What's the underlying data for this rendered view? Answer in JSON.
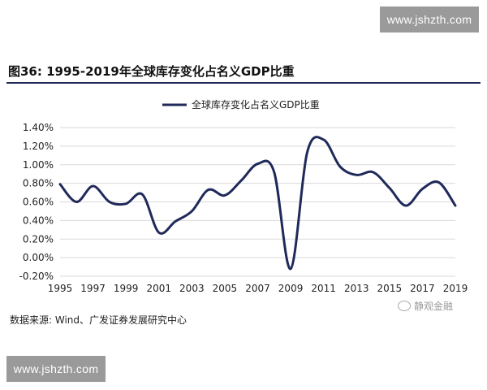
{
  "watermark": {
    "top": "www.jshzth.com",
    "bottom": "www.jshzth.com"
  },
  "figure": {
    "title": "图36:  1995-2019年全球库存变化占名义GDP比重",
    "source": "数据来源:  Wind、广发证券发展研究中心",
    "brand": "静观金融"
  },
  "colors": {
    "line": "#1f2a5a",
    "grid": "#d9d9d9",
    "rule": "#1f2a5a"
  },
  "chart_data": {
    "type": "line",
    "title": "",
    "xlabel": "",
    "ylabel": "",
    "legend_position": "top-center",
    "grid": true,
    "ylim": [
      -0.2,
      1.4
    ],
    "yticks": [
      -0.2,
      0.0,
      0.2,
      0.4,
      0.6,
      0.8,
      1.0,
      1.2,
      1.4
    ],
    "ytick_labels": [
      "-0.20%",
      "0.00%",
      "0.20%",
      "0.40%",
      "0.60%",
      "0.80%",
      "1.00%",
      "1.20%",
      "1.40%"
    ],
    "xlim": [
      1995,
      2019
    ],
    "xtick_labels": [
      "1995",
      "1997",
      "1999",
      "2001",
      "2003",
      "2005",
      "2007",
      "2009",
      "2011",
      "2013",
      "2015",
      "2017",
      "2019"
    ],
    "series": [
      {
        "name": "全球库存变化占名义GDP比重",
        "x": [
          1995,
          1996,
          1997,
          1998,
          1999,
          2000,
          2001,
          2002,
          2003,
          2004,
          2005,
          2006,
          2007,
          2008,
          2009,
          2010,
          2011,
          2012,
          2013,
          2014,
          2015,
          2016,
          2017,
          2018,
          2019
        ],
        "values": [
          0.79,
          0.6,
          0.77,
          0.6,
          0.58,
          0.68,
          0.27,
          0.39,
          0.5,
          0.73,
          0.67,
          0.83,
          1.01,
          0.92,
          -0.12,
          1.13,
          1.27,
          0.98,
          0.89,
          0.92,
          0.75,
          0.56,
          0.74,
          0.81,
          0.56
        ]
      }
    ]
  }
}
